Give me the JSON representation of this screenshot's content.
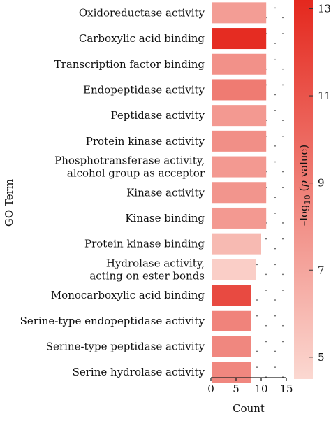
{
  "chart_data": {
    "type": "bar",
    "orientation": "horizontal",
    "ylabel": "GO Term",
    "xlabel": "Count",
    "xlim": [
      0,
      15
    ],
    "xticks": [
      0,
      5,
      10,
      15
    ],
    "categories": [
      "Oxidoreductase activity",
      "Carboxylic acid binding",
      "Transcription factor binding",
      "Endopeptidase activity",
      "Peptidase activity",
      "Protein kinase activity",
      "Phosphotransferase activity,\nalcohol group as acceptor",
      "Kinase activity",
      "Kinase binding",
      "Protein kinase binding",
      "Hydrolase activity,\nacting on ester bonds",
      "Monocarboxylic acid binding",
      "Serine-type endopeptidase activity",
      "Serine-type peptidase activity",
      "Serine hydrolase activity"
    ],
    "values": [
      11,
      11,
      11,
      11,
      11,
      11,
      11,
      11,
      11,
      10,
      9,
      8,
      8,
      8,
      8
    ],
    "neg_log10_p": [
      7.4,
      13.0,
      8.0,
      9.1,
      7.6,
      8.1,
      7.6,
      7.8,
      7.6,
      6.0,
      5.0,
      11.5,
      8.7,
      8.5,
      8.5
    ],
    "colorbar": {
      "title": "–log10 (p value)",
      "title_prefix": "–log",
      "title_subscript": "10",
      "title_open": " (",
      "title_italic": "p",
      "title_close": " value)",
      "range": [
        4.5,
        13.2
      ],
      "ticks": [
        5,
        7,
        9,
        11,
        13
      ],
      "tick_labels": [
        "5",
        "7",
        "9",
        "11",
        "13"
      ],
      "low_color": "#fbd8d1",
      "high_color": "#e4281e"
    },
    "grid": false,
    "dotted_background": true
  }
}
